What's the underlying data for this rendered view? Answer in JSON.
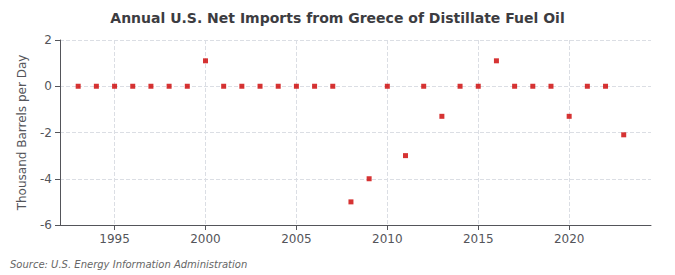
{
  "chart_data": {
    "type": "scatter",
    "title": "Annual U.S. Net Imports from Greece of Distillate Fuel Oil",
    "ylabel": "Thousand Barrels per Day",
    "annotations": [
      "Source: U.S. Energy Information Administration"
    ],
    "x": [
      1993,
      1994,
      1995,
      1996,
      1997,
      1998,
      1999,
      2000,
      2001,
      2002,
      2003,
      2004,
      2005,
      2006,
      2007,
      2008,
      2009,
      2010,
      2011,
      2012,
      2013,
      2014,
      2015,
      2016,
      2017,
      2018,
      2019,
      2020,
      2021,
      2022,
      2023
    ],
    "values": [
      0,
      0,
      0,
      0,
      0,
      0,
      0,
      1.1,
      0,
      0,
      0,
      0,
      0,
      0,
      0,
      -5.0,
      -4.0,
      0,
      -3.0,
      0,
      -1.3,
      0,
      0,
      1.1,
      0,
      0,
      0,
      -1.3,
      0,
      0,
      -2.1
    ],
    "color": "#cc0000",
    "marker": "square",
    "xlim": [
      1992.0,
      2024.5
    ],
    "xticks": [
      1995,
      2000,
      2005,
      2010,
      2015,
      2020
    ],
    "ylim": [
      -6,
      2
    ],
    "yticks": [
      -6,
      -4,
      -2,
      0,
      2
    ],
    "grid": true
  }
}
